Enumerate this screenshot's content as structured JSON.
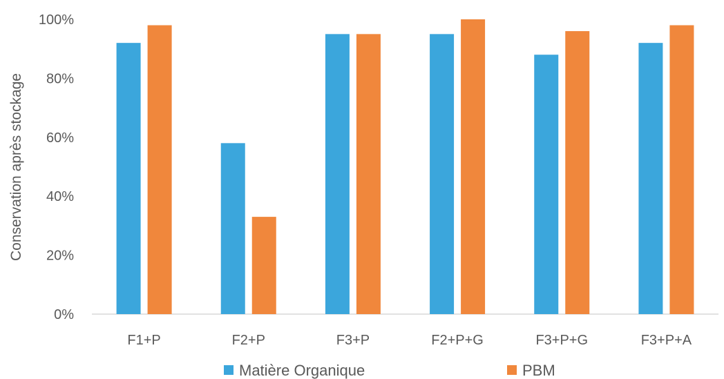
{
  "chart_data": {
    "type": "bar",
    "title": "",
    "xlabel": "",
    "ylabel": "Conservation après stockage",
    "ylim": [
      0,
      100
    ],
    "y_ticks": [
      0,
      20,
      40,
      60,
      80,
      100
    ],
    "y_tick_labels": [
      "0%",
      "20%",
      "40%",
      "60%",
      "80%",
      "100%"
    ],
    "grid": false,
    "legend_position": "bottom",
    "categories": [
      "F1+P",
      "F2+P",
      "F3+P",
      "F2+P+G",
      "F3+P+G",
      "F3+P+A"
    ],
    "series": [
      {
        "name": "Matière Organique",
        "color": "#3BA6DC",
        "values": [
          92,
          58,
          95,
          95,
          88,
          92
        ]
      },
      {
        "name": "PBM",
        "color": "#F0873C",
        "values": [
          98,
          33,
          95,
          100,
          96,
          98
        ]
      }
    ]
  }
}
